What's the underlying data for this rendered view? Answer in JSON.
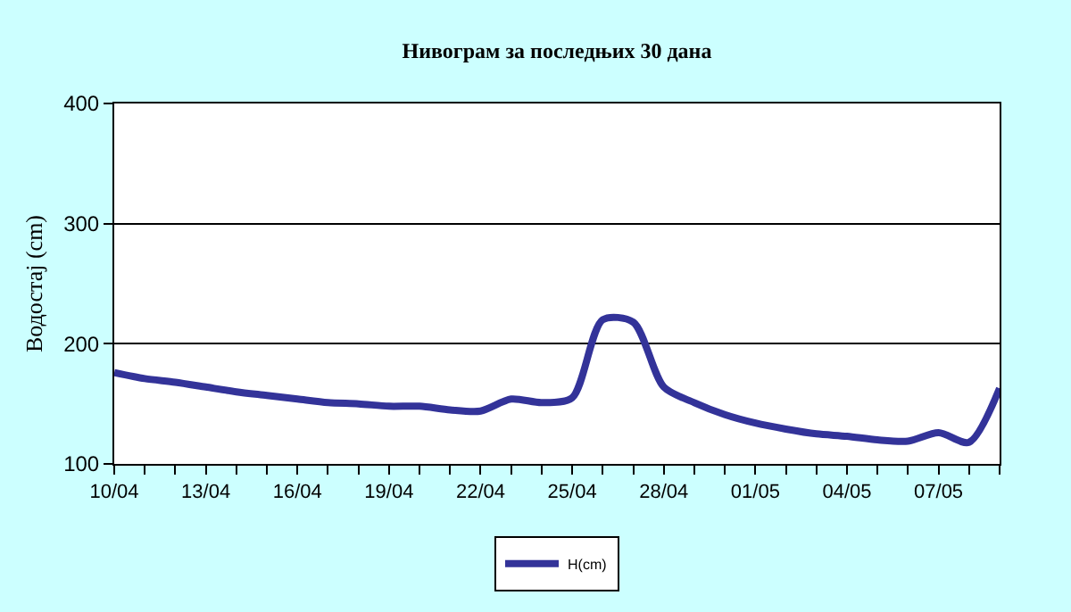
{
  "chart_data": {
    "type": "line",
    "title": "Нивограм за последњих 30 дана",
    "ylabel": "Водостај (cm)",
    "categories": [
      "10/04",
      null,
      null,
      "13/04",
      null,
      null,
      "16/04",
      null,
      null,
      "19/04",
      null,
      null,
      "22/04",
      null,
      null,
      "25/04",
      null,
      null,
      "28/04",
      null,
      null,
      "01/05",
      null,
      null,
      "04/05",
      null,
      null,
      "07/05",
      null,
      null
    ],
    "series": [
      {
        "name": "H(cm)",
        "color": "#333399",
        "values": [
          176,
          171,
          168,
          164,
          160,
          157,
          154,
          151,
          150,
          148,
          148,
          145,
          144,
          154,
          151,
          155,
          220,
          218,
          164,
          151,
          141,
          134,
          129,
          125,
          123,
          120,
          119,
          126,
          118,
          163
        ]
      }
    ],
    "ylim": [
      100,
      400
    ],
    "yticks": [
      100,
      200,
      300,
      400
    ],
    "grid": "y",
    "legend": "bottom",
    "marker": "none",
    "line_style": "solid"
  }
}
